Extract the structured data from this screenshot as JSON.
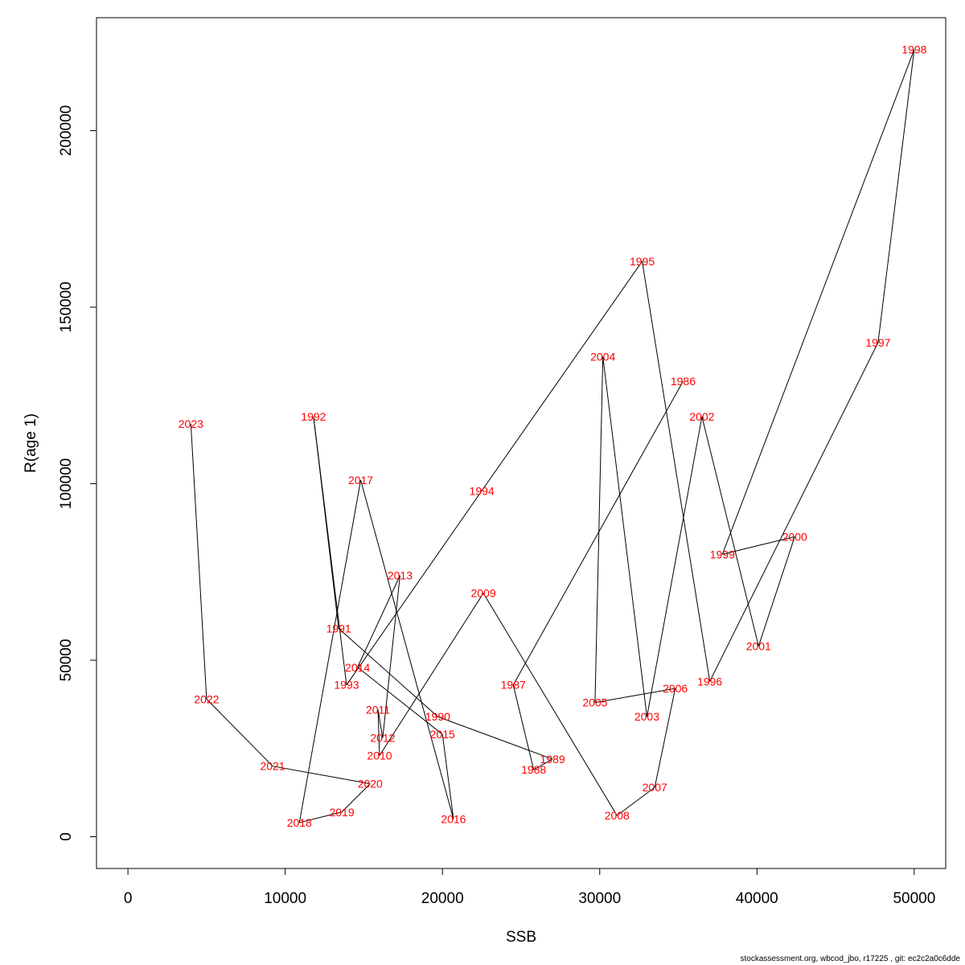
{
  "chart_data": {
    "type": "line",
    "title": "",
    "xlabel": "SSB",
    "ylabel": "R(age 1)",
    "xlim": [
      -2000,
      52000
    ],
    "ylim": [
      -9000,
      232000
    ],
    "xticks": [
      0,
      10000,
      20000,
      30000,
      40000,
      50000
    ],
    "xtick_labels": [
      "0",
      "10000",
      "20000",
      "30000",
      "40000",
      "50000"
    ],
    "yticks": [
      0,
      50000,
      100000,
      150000,
      200000
    ],
    "ytick_labels": [
      "0",
      "50000",
      "100000",
      "150000",
      "200000"
    ],
    "grid": false,
    "line_color": "#000000",
    "label_color": "#ff0000",
    "points": [
      {
        "label": "1986",
        "x": 35300,
        "y": 129000
      },
      {
        "label": "1987",
        "x": 24500,
        "y": 43000
      },
      {
        "label": "1988",
        "x": 25800,
        "y": 19000
      },
      {
        "label": "1989",
        "x": 27000,
        "y": 22000
      },
      {
        "label": "1990",
        "x": 19700,
        "y": 34000
      },
      {
        "label": "1991",
        "x": 13400,
        "y": 59000
      },
      {
        "label": "1992",
        "x": 11800,
        "y": 119000
      },
      {
        "label": "1993",
        "x": 13900,
        "y": 43000
      },
      {
        "label": "1994",
        "x": 22500,
        "y": 98000
      },
      {
        "label": "1995",
        "x": 32700,
        "y": 163000
      },
      {
        "label": "1996",
        "x": 37000,
        "y": 44000
      },
      {
        "label": "1997",
        "x": 47700,
        "y": 140000
      },
      {
        "label": "1998",
        "x": 50000,
        "y": 223000
      },
      {
        "label": "1999",
        "x": 37800,
        "y": 80000
      },
      {
        "label": "2000",
        "x": 42400,
        "y": 85000
      },
      {
        "label": "2001",
        "x": 40100,
        "y": 54000
      },
      {
        "label": "2002",
        "x": 36500,
        "y": 119000
      },
      {
        "label": "2003",
        "x": 33000,
        "y": 34000
      },
      {
        "label": "2004",
        "x": 30200,
        "y": 136000
      },
      {
        "label": "2005",
        "x": 29700,
        "y": 38000
      },
      {
        "label": "2006",
        "x": 34800,
        "y": 42000
      },
      {
        "label": "2007",
        "x": 33500,
        "y": 14000
      },
      {
        "label": "2008",
        "x": 31100,
        "y": 6000
      },
      {
        "label": "2009",
        "x": 22600,
        "y": 69000
      },
      {
        "label": "2010",
        "x": 16000,
        "y": 23000
      },
      {
        "label": "2011",
        "x": 15900,
        "y": 36000
      },
      {
        "label": "2012",
        "x": 16200,
        "y": 28000
      },
      {
        "label": "2013",
        "x": 17300,
        "y": 74000
      },
      {
        "label": "2014",
        "x": 14600,
        "y": 48000
      },
      {
        "label": "2015",
        "x": 20000,
        "y": 29000
      },
      {
        "label": "2016",
        "x": 20700,
        "y": 5000
      },
      {
        "label": "2017",
        "x": 14800,
        "y": 101000
      },
      {
        "label": "2018",
        "x": 10900,
        "y": 4000
      },
      {
        "label": "2019",
        "x": 13600,
        "y": 7000
      },
      {
        "label": "2020",
        "x": 15400,
        "y": 15000
      },
      {
        "label": "2021",
        "x": 9200,
        "y": 20000
      },
      {
        "label": "2022",
        "x": 5000,
        "y": 39000
      },
      {
        "label": "2023",
        "x": 4000,
        "y": 117000
      }
    ]
  },
  "footer": "stockassessment.org, wbcod_jbo, r17225 , git: ec2c2a0c6dde"
}
